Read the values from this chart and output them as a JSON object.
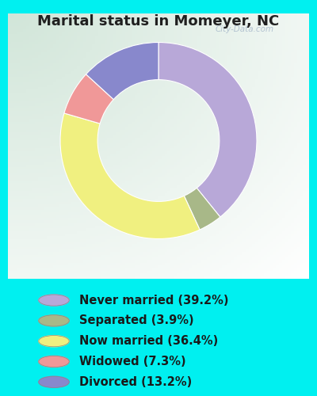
{
  "title": "Marital status in Momeyer, NC",
  "slices": [
    39.2,
    3.9,
    36.4,
    7.3,
    13.2
  ],
  "labels": [
    "Never married (39.2%)",
    "Separated (3.9%)",
    "Now married (36.4%)",
    "Widowed (7.3%)",
    "Divorced (13.2%)"
  ],
  "colors": [
    "#b8a8d8",
    "#a8b888",
    "#f0f080",
    "#f09898",
    "#8888cc"
  ],
  "bg_color": "#00f0f0",
  "chart_bg_tl": "#d8ede0",
  "chart_bg_tr": "#e8f0e8",
  "chart_bg_br": "#f0f8f0",
  "title_color": "#202020",
  "title_fontsize": 13,
  "donut_width": 0.38,
  "legend_fontsize": 10.5,
  "watermark": "City-Data.com"
}
